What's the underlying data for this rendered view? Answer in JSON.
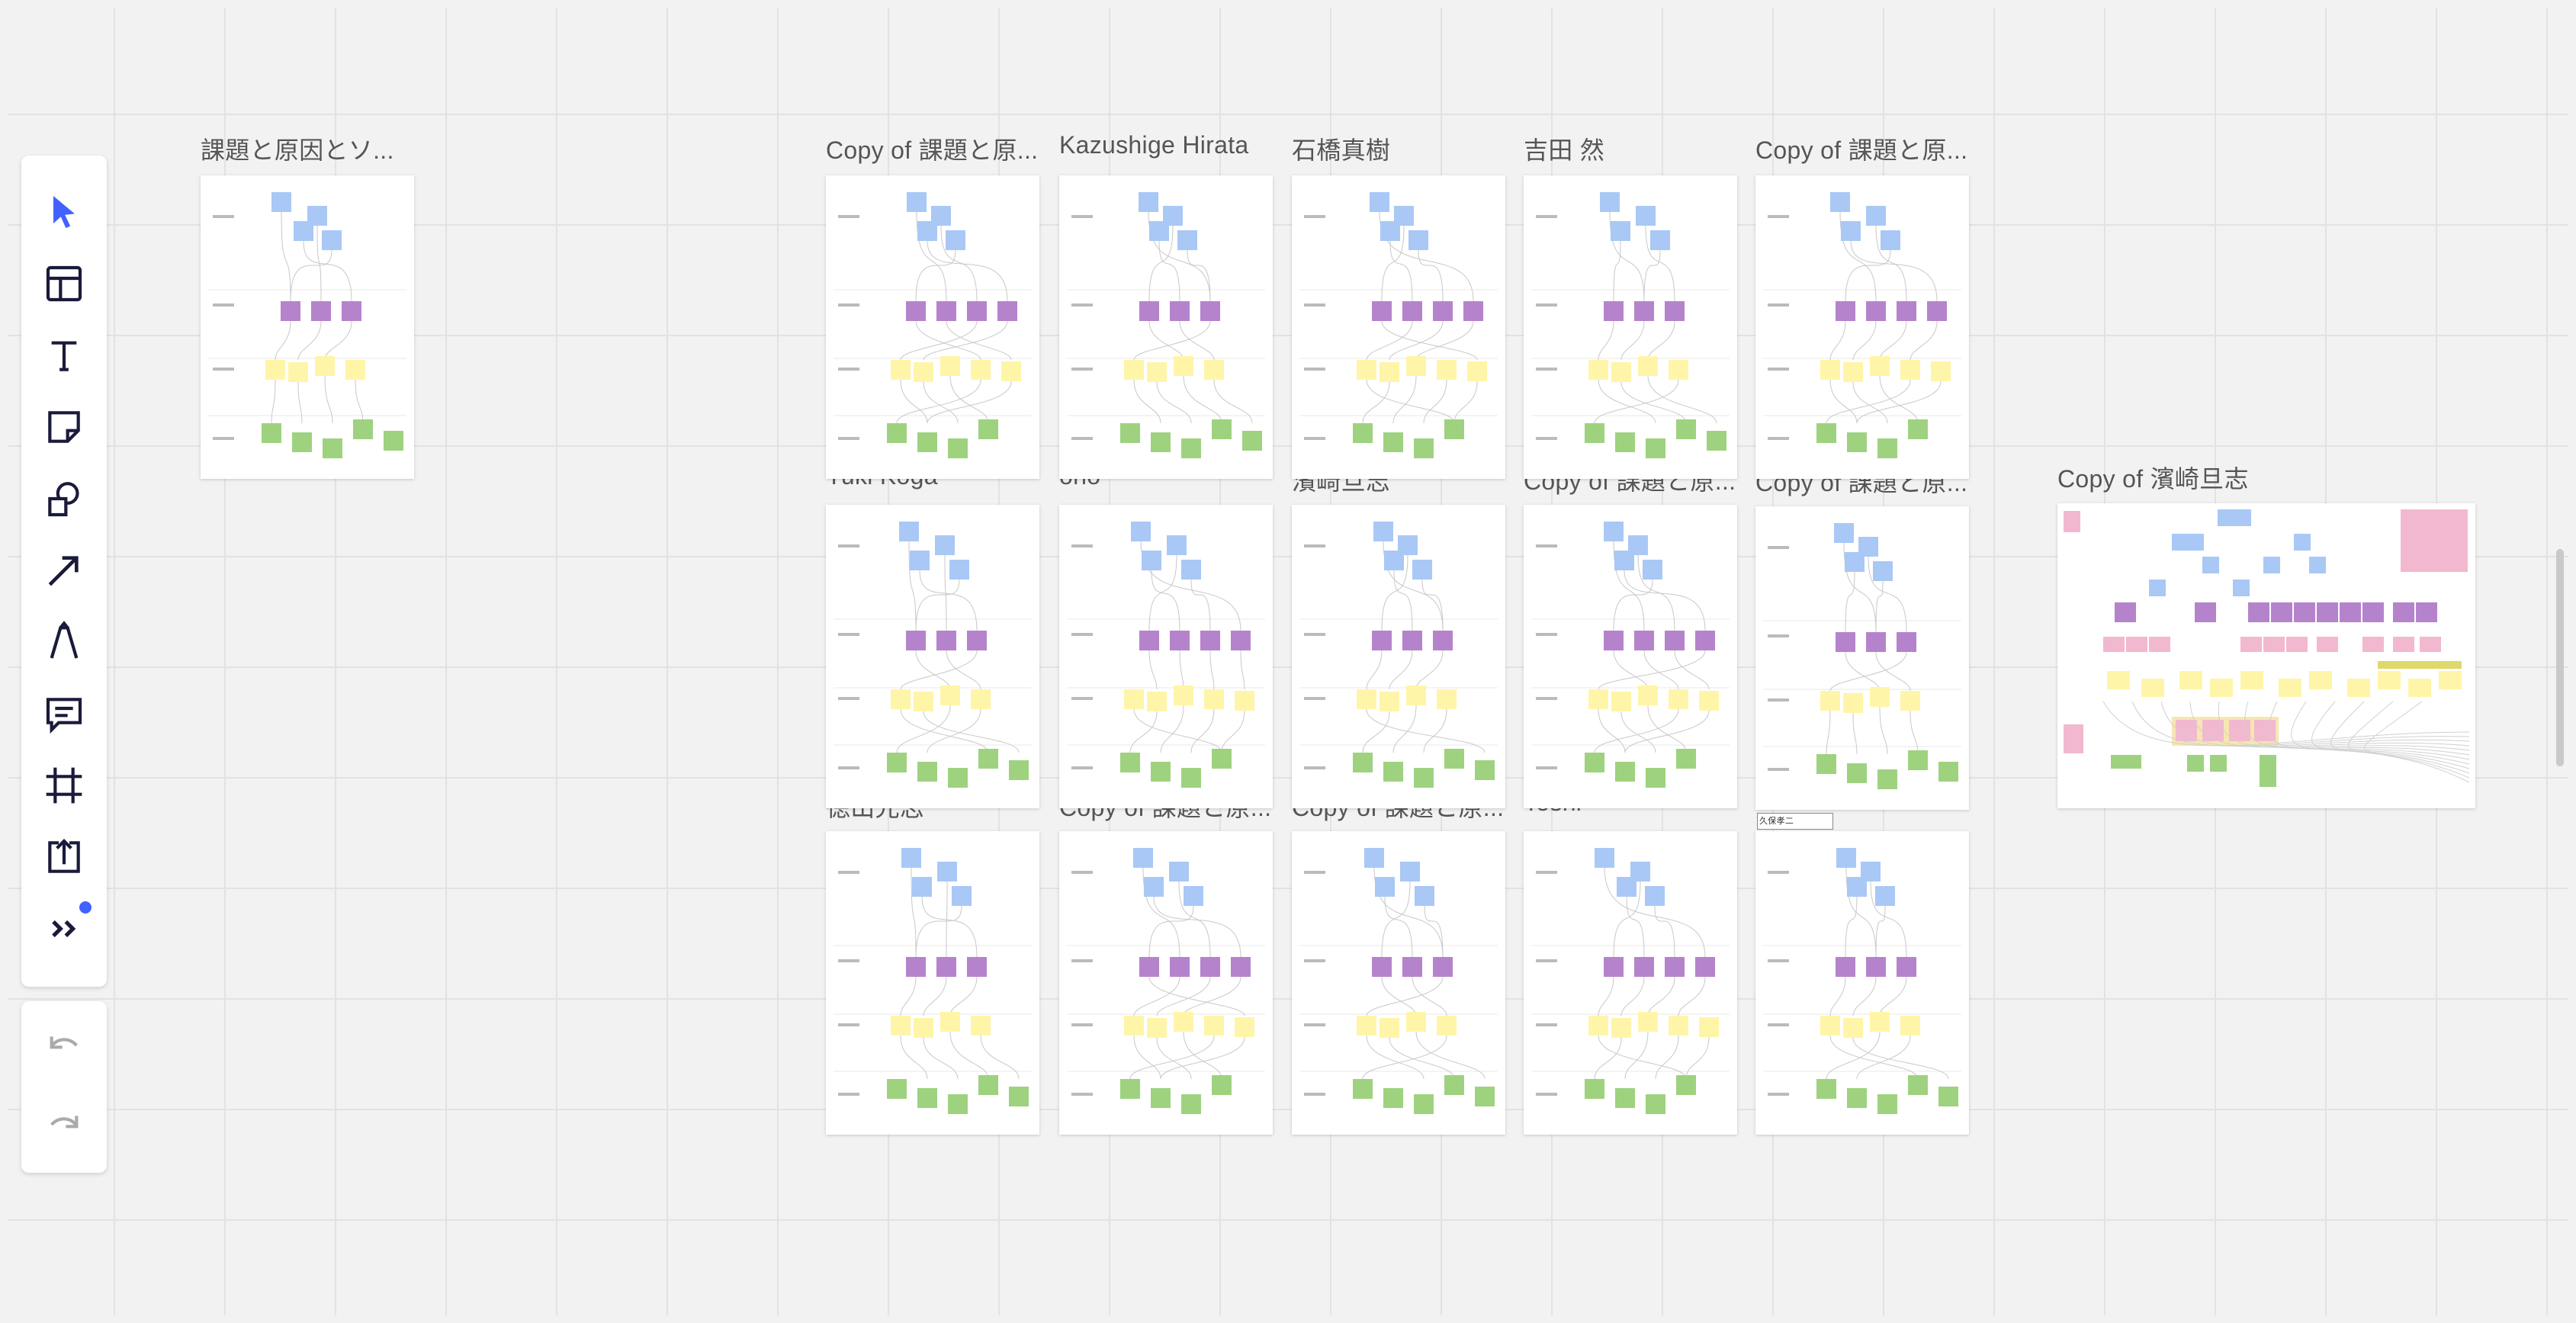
{
  "toolbar": {
    "tools": [
      {
        "name": "select-tool",
        "icon": "cursor-arrow-icon",
        "active": true
      },
      {
        "name": "templates-tool",
        "icon": "layout-template-icon"
      },
      {
        "name": "text-tool",
        "icon": "text-t-icon"
      },
      {
        "name": "sticky-note-tool",
        "icon": "sticky-note-icon"
      },
      {
        "name": "shapes-tool",
        "icon": "shapes-icon"
      },
      {
        "name": "connection-line-tool",
        "icon": "arrow-line-icon"
      },
      {
        "name": "pen-tool",
        "icon": "pen-icon"
      },
      {
        "name": "comment-tool",
        "icon": "comment-icon"
      },
      {
        "name": "frame-tool",
        "icon": "frame-hash-icon"
      },
      {
        "name": "upload-tool",
        "icon": "upload-icon"
      },
      {
        "name": "more-apps-tool",
        "icon": "double-chevron-right-icon"
      }
    ],
    "history": [
      {
        "name": "undo-button",
        "icon": "undo-icon"
      },
      {
        "name": "redo-button",
        "icon": "redo-icon"
      }
    ],
    "accent_color": "#4262ff"
  },
  "frames": [
    {
      "title": "課題と原因とソ..."
    },
    {
      "title": "Copy of 課題と原..."
    },
    {
      "title": "Kazushige Hirata"
    },
    {
      "title": "石橋真樹"
    },
    {
      "title": "吉田 然"
    },
    {
      "title": "Copy of 課題と原..."
    },
    {
      "title": "Yuki Koga"
    },
    {
      "title": "ono"
    },
    {
      "title": "濱崎旦志"
    },
    {
      "title": "Copy of 課題と原..."
    },
    {
      "title": "Copy of 課題と原..."
    },
    {
      "title": "Copy of 濱崎旦志"
    },
    {
      "title": "徳山光志"
    },
    {
      "title": "Copy of 課題と原..."
    },
    {
      "title": "Copy of 課題と原..."
    },
    {
      "title": "Toshi"
    },
    {
      "title": "久保孝二"
    }
  ],
  "sticky_colors": {
    "blue": "#a9c8f5",
    "purple": "#b583cc",
    "yellow": "#fff5a8",
    "green": "#9ed27f",
    "pink": "#f2b8cf"
  }
}
